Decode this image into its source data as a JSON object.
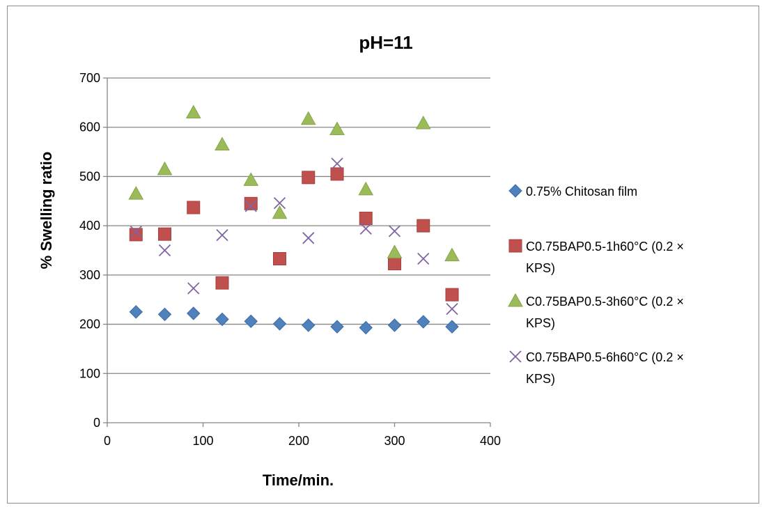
{
  "chart_data": {
    "type": "scatter",
    "title": "pH=11",
    "xlabel": "Time/min.",
    "ylabel": "% Swelling ratio",
    "xlim": [
      0,
      400
    ],
    "ylim": [
      0,
      700
    ],
    "xticks": [
      0,
      100,
      200,
      300,
      400
    ],
    "yticks": [
      0,
      100,
      200,
      300,
      400,
      500,
      600,
      700
    ],
    "grid": "horizontal",
    "legend_position": "right",
    "series": [
      {
        "name": "0.75% Chitosan film",
        "marker": "diamond",
        "color": "#4F81BD",
        "x": [
          30,
          60,
          90,
          120,
          150,
          180,
          210,
          240,
          270,
          300,
          330,
          360
        ],
        "y": [
          225,
          220,
          222,
          210,
          206,
          201,
          198,
          195,
          193,
          198,
          205,
          195
        ]
      },
      {
        "name": "C0.75BAP0.5-1h60°C (0.2 × KPS)",
        "legend_lines": [
          "C0.75BAP0.5-1h60°C (0.2 ×",
          "KPS)"
        ],
        "marker": "square",
        "color": "#C0504D",
        "x": [
          30,
          60,
          90,
          120,
          150,
          180,
          210,
          240,
          270,
          300,
          330,
          360
        ],
        "y": [
          382,
          383,
          437,
          284,
          445,
          333,
          498,
          505,
          415,
          323,
          400,
          260
        ]
      },
      {
        "name": "C0.75BAP0.5-3h60°C (0.2 × KPS)",
        "legend_lines": [
          "C0.75BAP0.5-3h60°C (0.2 ×",
          "KPS)"
        ],
        "marker": "triangle",
        "color": "#9BBB59",
        "x": [
          30,
          60,
          90,
          120,
          150,
          180,
          210,
          240,
          270,
          300,
          330,
          360
        ],
        "y": [
          465,
          515,
          630,
          565,
          493,
          426,
          617,
          596,
          474,
          346,
          608,
          340
        ]
      },
      {
        "name": "C0.75BAP0.5-6h60°C (0.2 × KPS)",
        "legend_lines": [
          "C0.75BAP0.5-6h60°C (0.2 ×",
          "KPS)"
        ],
        "marker": "x",
        "color": "#8064A2",
        "x": [
          30,
          60,
          90,
          120,
          150,
          180,
          210,
          240,
          270,
          300,
          330,
          360
        ],
        "y": [
          388,
          350,
          273,
          381,
          440,
          446,
          375,
          526,
          394,
          389,
          333,
          231
        ]
      }
    ]
  }
}
